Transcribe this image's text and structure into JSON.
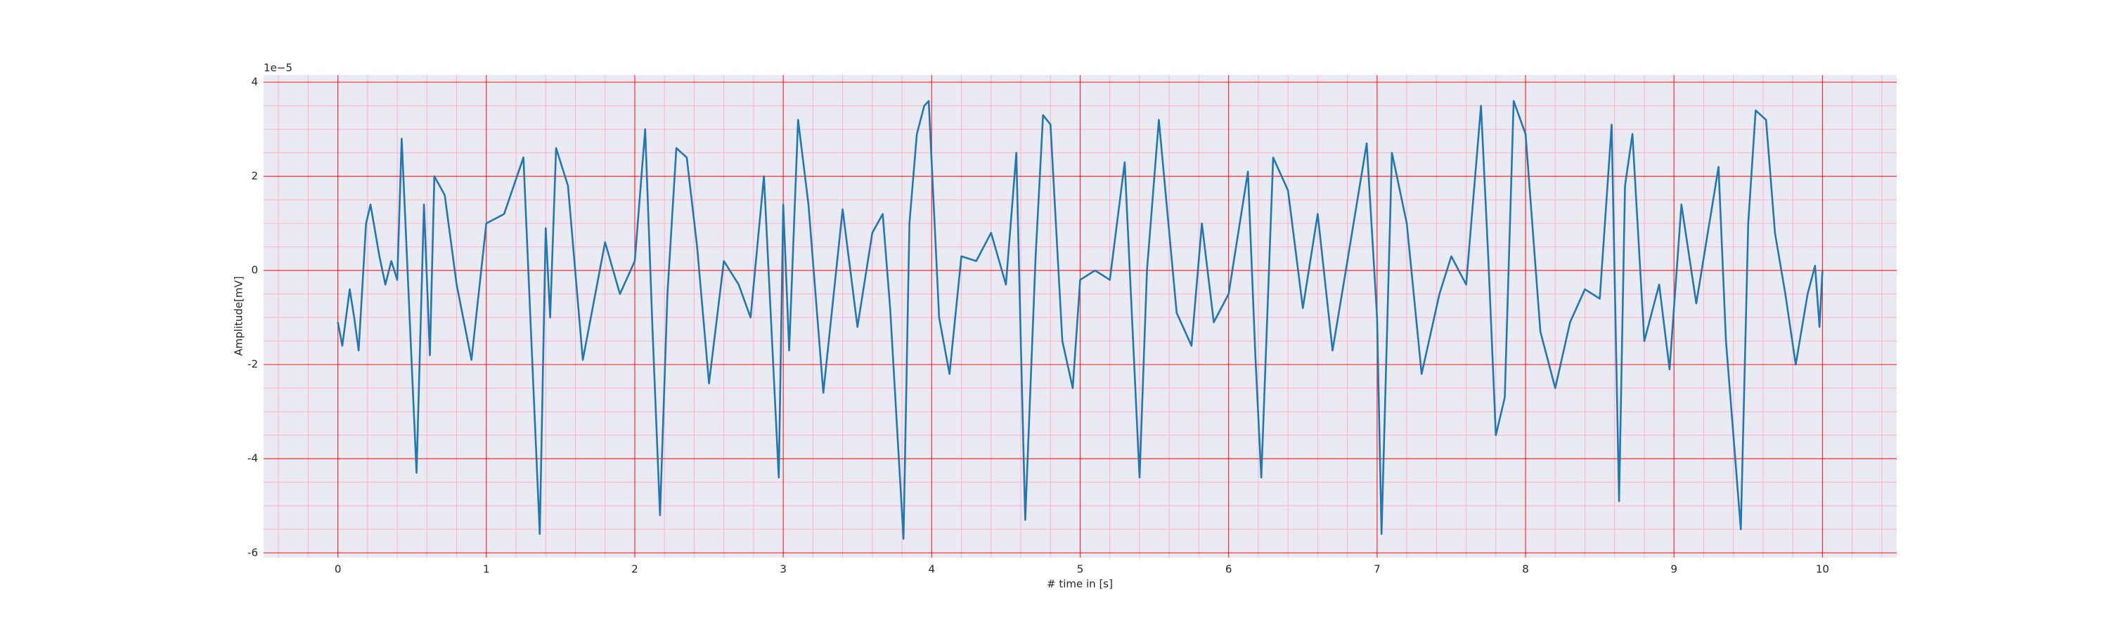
{
  "chart_data": {
    "type": "line",
    "x_label": "# time in [s]",
    "y_label": "Amplitude[mV]",
    "y_offset_label": "1e−5",
    "xlim": [
      -0.5,
      10.5
    ],
    "ylim": [
      -6.1,
      4.15
    ],
    "xticks": [
      0,
      1,
      2,
      3,
      4,
      5,
      6,
      7,
      8,
      9,
      10
    ],
    "yticks": [
      -6,
      -4,
      -2,
      0,
      2,
      4
    ],
    "xminorticks": [
      -0.4,
      -0.2,
      0.2,
      0.4,
      0.6,
      0.8,
      1.2,
      1.4,
      1.6,
      1.8,
      2.2,
      2.4,
      2.6,
      2.8,
      3.2,
      3.4,
      3.6,
      3.8,
      4.2,
      4.4,
      4.6,
      4.8,
      5.2,
      5.4,
      5.6,
      5.8,
      6.2,
      6.4,
      6.6,
      6.8,
      7.2,
      7.4,
      7.6,
      7.8,
      8.2,
      8.4,
      8.6,
      8.8,
      9.2,
      9.4,
      9.6,
      9.8,
      10.2,
      10.4
    ],
    "yminorticks": [
      -5.5,
      -5,
      -4.5,
      -3.5,
      -3,
      -2.5,
      -1.5,
      -1,
      -0.5,
      0.5,
      1,
      1.5,
      2.5,
      3,
      3.5
    ],
    "grid": true,
    "grid_color": "#ff0000",
    "minor_grid_color": "#ffb0c8",
    "background": "#eaeaf2",
    "series": [
      {
        "color": "#1f77b4",
        "x": [
          0,
          0.03,
          0.08,
          0.11,
          0.14,
          0.19,
          0.22,
          0.28,
          0.32,
          0.36,
          0.4,
          0.43,
          0.53,
          0.58,
          0.62,
          0.65,
          0.72,
          0.8,
          0.9,
          1.0,
          1.12,
          1.25,
          1.36,
          1.4,
          1.43,
          1.47,
          1.55,
          1.65,
          1.8,
          1.9,
          2.0,
          2.07,
          2.12,
          2.17,
          2.22,
          2.28,
          2.35,
          2.42,
          2.5,
          2.6,
          2.7,
          2.78,
          2.87,
          2.97,
          3.0,
          3.04,
          3.1,
          3.17,
          3.27,
          3.4,
          3.5,
          3.6,
          3.67,
          3.72,
          3.81,
          3.85,
          3.9,
          3.95,
          3.98,
          4.05,
          4.12,
          4.2,
          4.3,
          4.4,
          4.5,
          4.57,
          4.6,
          4.63,
          4.7,
          4.75,
          4.8,
          4.88,
          4.95,
          5.0,
          5.1,
          5.2,
          5.3,
          5.4,
          5.45,
          5.53,
          5.65,
          5.75,
          5.82,
          5.9,
          6.0,
          6.13,
          6.18,
          6.22,
          6.3,
          6.4,
          6.5,
          6.6,
          6.7,
          6.8,
          6.93,
          7.0,
          7.03,
          7.1,
          7.2,
          7.3,
          7.42,
          7.5,
          7.6,
          7.7,
          7.75,
          7.8,
          7.86,
          7.92,
          8.0,
          8.1,
          8.2,
          8.3,
          8.4,
          8.5,
          8.58,
          8.63,
          8.67,
          8.72,
          8.8,
          8.9,
          8.97,
          9.05,
          9.15,
          9.3,
          9.35,
          9.45,
          9.5,
          9.55,
          9.62,
          9.68,
          9.75,
          9.82,
          9.9,
          9.95,
          9.98,
          10.0
        ],
        "values": [
          -1.1,
          -1.6,
          -0.4,
          -1.0,
          -1.7,
          1.0,
          1.4,
          0.3,
          -0.3,
          0.2,
          -0.2,
          2.8,
          -4.3,
          1.4,
          -1.8,
          2.0,
          1.6,
          -0.3,
          -1.9,
          1.0,
          1.2,
          2.4,
          -5.6,
          0.9,
          -1.0,
          2.6,
          1.8,
          -1.9,
          0.6,
          -0.5,
          0.2,
          3.0,
          -1.3,
          -5.2,
          -0.5,
          2.6,
          2.4,
          0.5,
          -2.4,
          0.2,
          -0.3,
          -1.0,
          2.0,
          -4.4,
          1.4,
          -1.7,
          3.2,
          1.4,
          -2.6,
          1.3,
          -1.2,
          0.8,
          1.2,
          -0.8,
          -5.7,
          1.0,
          2.9,
          3.5,
          3.6,
          -1.0,
          -2.2,
          0.3,
          0.2,
          0.8,
          -0.3,
          2.5,
          -1.5,
          -5.3,
          0.3,
          3.3,
          3.1,
          -1.5,
          -2.5,
          -0.2,
          0.0,
          -0.2,
          2.3,
          -4.4,
          0.0,
          3.2,
          -0.9,
          -1.6,
          1.0,
          -1.1,
          -0.5,
          2.1,
          -1.8,
          -4.4,
          2.4,
          1.7,
          -0.8,
          1.2,
          -1.7,
          0.2,
          2.7,
          -1.0,
          -5.6,
          2.5,
          1.0,
          -2.2,
          -0.5,
          0.3,
          -0.3,
          3.5,
          0.2,
          -3.5,
          -2.7,
          3.6,
          2.9,
          -1.3,
          -2.5,
          -1.1,
          -0.4,
          -0.6,
          3.1,
          -4.9,
          1.8,
          2.9,
          -1.5,
          -0.3,
          -2.1,
          1.4,
          -0.7,
          2.2,
          -1.5,
          -5.5,
          1.0,
          3.4,
          3.2,
          0.8,
          -0.5,
          -2.0,
          -0.5,
          0.1,
          -1.2,
          0.0
        ]
      }
    ]
  }
}
